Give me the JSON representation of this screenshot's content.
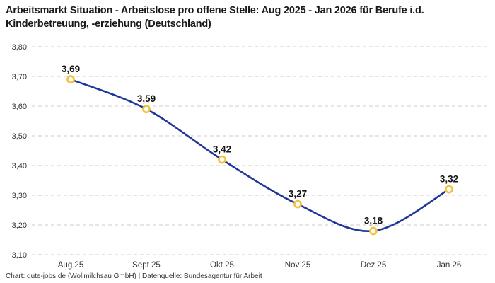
{
  "title": "Arbeitsmarkt Situation - Arbeitslose pro offene Stelle: Aug 2025 - Jan 2026 für Berufe i.d. Kinderbetreuung, -erziehung (Deutschland)",
  "footer": "Chart: gute-jobs.de (Wollmilchsau GmbH) | Datenquelle: Bundesagentur für Arbeit",
  "chart_data": {
    "type": "line",
    "title": "Arbeitsmarkt Situation - Arbeitslose pro offene Stelle: Aug 2025 - Jan 2026 für Berufe i.d. Kinderbetreuung, -erziehung (Deutschland)",
    "categories": [
      "Aug 25",
      "Sept 25",
      "Okt 25",
      "Nov 25",
      "Dez 25",
      "Jan 26"
    ],
    "values": [
      3.69,
      3.59,
      3.42,
      3.27,
      3.18,
      3.32
    ],
    "value_labels": [
      "3,69",
      "3,59",
      "3,42",
      "3,27",
      "3,18",
      "3,32"
    ],
    "ylim": [
      3.1,
      3.8
    ],
    "ytick_step": 0.1,
    "ytick_labels": [
      "3,10",
      "3,20",
      "3,30",
      "3,40",
      "3,50",
      "3,60",
      "3,70",
      "3,80"
    ],
    "xlabel": "",
    "ylabel": "",
    "grid": true,
    "grid_style": "dashed",
    "legend": false,
    "smooth": true,
    "colors": {
      "line": "#1e3799",
      "marker_stroke": "#f2c23e",
      "marker_fill": "#ffffff",
      "gridline": "#cccccc",
      "tick_text": "#333333",
      "data_label": "#141414",
      "title_text": "#1a1a1a"
    }
  }
}
